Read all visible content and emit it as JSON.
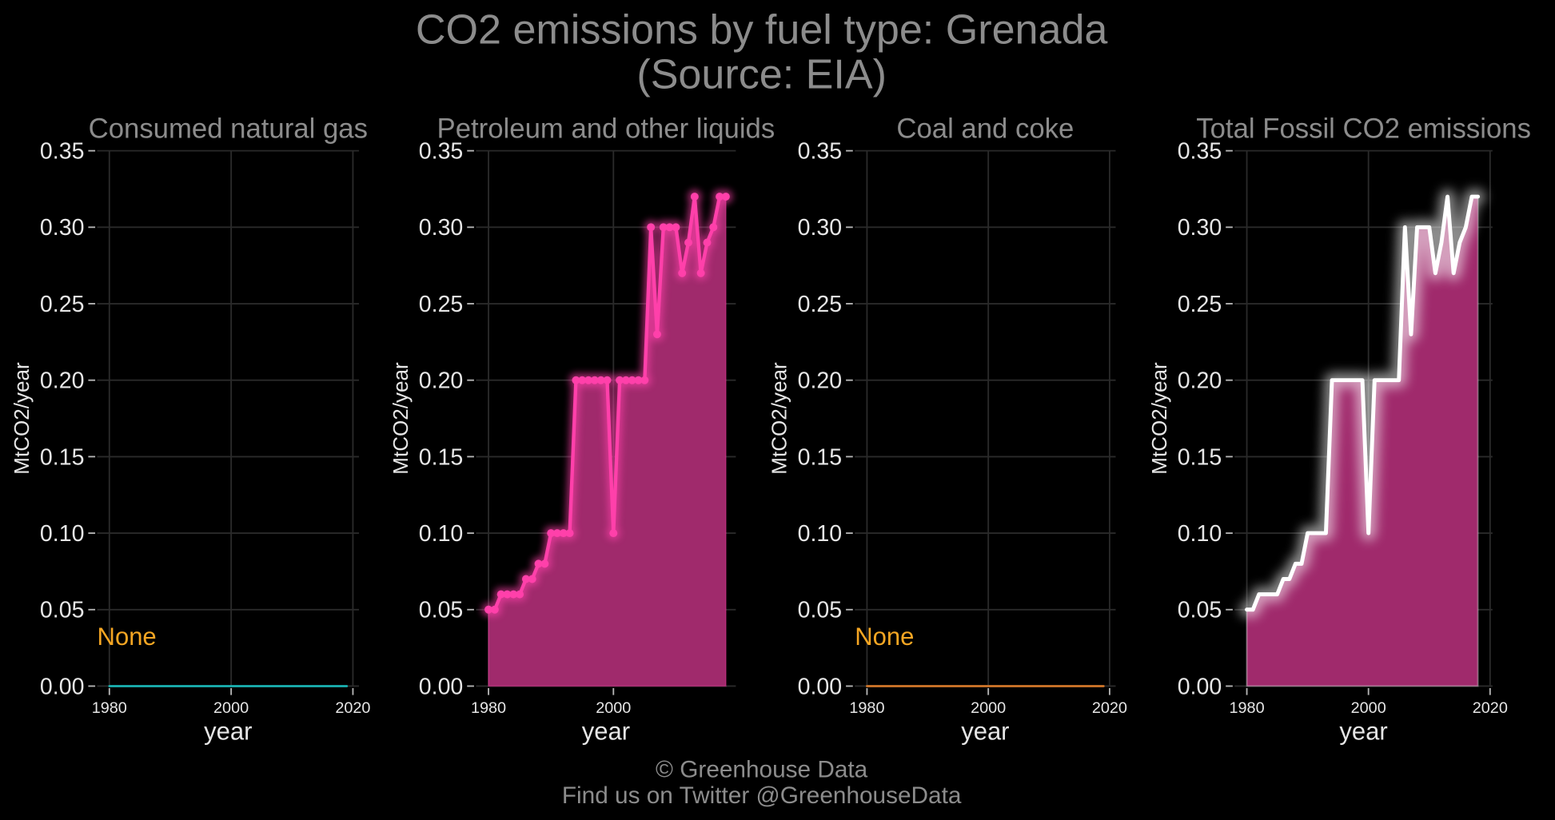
{
  "title": "CO2 emissions by fuel type: Grenada",
  "subtitle": "(Source: EIA)",
  "footer": {
    "copyright": "© Greenhouse Data",
    "social": "Find us on Twitter @GreenhouseData"
  },
  "colors": {
    "background": "#000000",
    "title_text": "#8c8c8c",
    "axis_text": "#e6e6e6",
    "grid": "#2a2a2a",
    "tick": "#b5b5b5"
  },
  "chart_data": [
    {
      "type": "line",
      "title": "Consumed natural gas",
      "xlabel": "year",
      "ylabel": "MtCO2/year",
      "xlim": [
        1978,
        2021
      ],
      "ylim": [
        0,
        0.35
      ],
      "xticks": [
        1980,
        2000,
        2020
      ],
      "xtick_labels": [
        "1980",
        "2000",
        "2020"
      ],
      "yticks": [
        0,
        0.05,
        0.1,
        0.15,
        0.2,
        0.25,
        0.3,
        0.35
      ],
      "ytick_labels": [
        "0.00",
        "0.05",
        "0.10",
        "0.15",
        "0.20",
        "0.25",
        "0.30",
        "0.35"
      ],
      "grid": true,
      "markers": false,
      "x": [
        1980,
        1981,
        1982,
        1983,
        1984,
        1985,
        1986,
        1987,
        1988,
        1989,
        1990,
        1991,
        1992,
        1993,
        1994,
        1995,
        1996,
        1997,
        1998,
        1999,
        2000,
        2001,
        2002,
        2003,
        2004,
        2005,
        2006,
        2007,
        2008,
        2009,
        2010,
        2011,
        2012,
        2013,
        2014,
        2015,
        2016,
        2017,
        2018,
        2019
      ],
      "series": [
        {
          "values": [
            0,
            0,
            0,
            0,
            0,
            0,
            0,
            0,
            0,
            0,
            0,
            0,
            0,
            0,
            0,
            0,
            0,
            0,
            0,
            0,
            0,
            0,
            0,
            0,
            0,
            0,
            0,
            0,
            0,
            0,
            0,
            0,
            0,
            0,
            0,
            0,
            0,
            0,
            0,
            0
          ],
          "color": "#1ab3b3"
        }
      ],
      "annotations": [
        {
          "text": "None",
          "color": "#f5a623"
        }
      ]
    },
    {
      "type": "area",
      "title": "Petroleum and other liquids",
      "xlabel": "year",
      "ylabel": "MtCO2/year",
      "xlim": [
        1978,
        2019.6
      ],
      "ylim": [
        0,
        0.35
      ],
      "xticks": [
        1980,
        2000
      ],
      "xtick_labels": [
        "1980",
        "2000"
      ],
      "yticks": [
        0,
        0.05,
        0.1,
        0.15,
        0.2,
        0.25,
        0.3,
        0.35
      ],
      "ytick_labels": [
        "0.00",
        "0.05",
        "0.10",
        "0.15",
        "0.20",
        "0.25",
        "0.30",
        "0.35"
      ],
      "grid": true,
      "markers": true,
      "x": [
        1980,
        1981,
        1982,
        1983,
        1984,
        1985,
        1986,
        1987,
        1988,
        1989,
        1990,
        1991,
        1992,
        1993,
        1994,
        1995,
        1996,
        1997,
        1998,
        1999,
        2000,
        2001,
        2002,
        2003,
        2004,
        2005,
        2006,
        2007,
        2008,
        2009,
        2010,
        2011,
        2012,
        2013,
        2014,
        2015,
        2016,
        2017,
        2018
      ],
      "series": [
        {
          "values": [
            0.05,
            0.05,
            0.06,
            0.06,
            0.06,
            0.06,
            0.07,
            0.07,
            0.08,
            0.08,
            0.1,
            0.1,
            0.1,
            0.1,
            0.2,
            0.2,
            0.2,
            0.2,
            0.2,
            0.2,
            0.1,
            0.2,
            0.2,
            0.2,
            0.2,
            0.2,
            0.3,
            0.23,
            0.3,
            0.3,
            0.3,
            0.27,
            0.29,
            0.32,
            0.27,
            0.29,
            0.3,
            0.32,
            0.32
          ],
          "color": "#ff40aa",
          "fill_color": "#a02a6c"
        }
      ],
      "annotations": []
    },
    {
      "type": "line",
      "title": "Coal and coke",
      "xlabel": "year",
      "ylabel": "MtCO2/year",
      "xlim": [
        1978,
        2021
      ],
      "ylim": [
        0,
        0.35
      ],
      "xticks": [
        1980,
        2000,
        2020
      ],
      "xtick_labels": [
        "1980",
        "2000",
        "2020"
      ],
      "yticks": [
        0,
        0.05,
        0.1,
        0.15,
        0.2,
        0.25,
        0.3,
        0.35
      ],
      "ytick_labels": [
        "0.00",
        "0.05",
        "0.10",
        "0.15",
        "0.20",
        "0.25",
        "0.30",
        "0.35"
      ],
      "grid": true,
      "markers": false,
      "x": [
        1980,
        1981,
        1982,
        1983,
        1984,
        1985,
        1986,
        1987,
        1988,
        1989,
        1990,
        1991,
        1992,
        1993,
        1994,
        1995,
        1996,
        1997,
        1998,
        1999,
        2000,
        2001,
        2002,
        2003,
        2004,
        2005,
        2006,
        2007,
        2008,
        2009,
        2010,
        2011,
        2012,
        2013,
        2014,
        2015,
        2016,
        2017,
        2018,
        2019
      ],
      "series": [
        {
          "values": [
            0,
            0,
            0,
            0,
            0,
            0,
            0,
            0,
            0,
            0,
            0,
            0,
            0,
            0,
            0,
            0,
            0,
            0,
            0,
            0,
            0,
            0,
            0,
            0,
            0,
            0,
            0,
            0,
            0,
            0,
            0,
            0,
            0,
            0,
            0,
            0,
            0,
            0,
            0,
            0
          ],
          "color": "#d2772a"
        }
      ],
      "annotations": [
        {
          "text": "None",
          "color": "#f5a623"
        }
      ]
    },
    {
      "type": "area",
      "title": "Total Fossil CO2 emissions",
      "xlabel": "year",
      "ylabel": "MtCO2/year",
      "xlim": [
        1978,
        2020.4
      ],
      "ylim": [
        0,
        0.35
      ],
      "xticks": [
        1980,
        2000,
        2020
      ],
      "xtick_labels": [
        "1980",
        "2000",
        "2020"
      ],
      "yticks": [
        0,
        0.05,
        0.1,
        0.15,
        0.2,
        0.25,
        0.3,
        0.35
      ],
      "ytick_labels": [
        "0.00",
        "0.05",
        "0.10",
        "0.15",
        "0.20",
        "0.25",
        "0.30",
        "0.35"
      ],
      "grid": true,
      "markers": false,
      "x": [
        1980,
        1981,
        1982,
        1983,
        1984,
        1985,
        1986,
        1987,
        1988,
        1989,
        1990,
        1991,
        1992,
        1993,
        1994,
        1995,
        1996,
        1997,
        1998,
        1999,
        2000,
        2001,
        2002,
        2003,
        2004,
        2005,
        2006,
        2007,
        2008,
        2009,
        2010,
        2011,
        2012,
        2013,
        2014,
        2015,
        2016,
        2017,
        2018
      ],
      "series": [
        {
          "values": [
            0.05,
            0.05,
            0.06,
            0.06,
            0.06,
            0.06,
            0.07,
            0.07,
            0.08,
            0.08,
            0.1,
            0.1,
            0.1,
            0.1,
            0.2,
            0.2,
            0.2,
            0.2,
            0.2,
            0.2,
            0.1,
            0.2,
            0.2,
            0.2,
            0.2,
            0.2,
            0.3,
            0.23,
            0.3,
            0.3,
            0.3,
            0.27,
            0.29,
            0.32,
            0.27,
            0.29,
            0.3,
            0.32,
            0.32
          ],
          "color": "#ffffff",
          "fill_color": "#a02a6c"
        }
      ],
      "annotations": []
    }
  ]
}
